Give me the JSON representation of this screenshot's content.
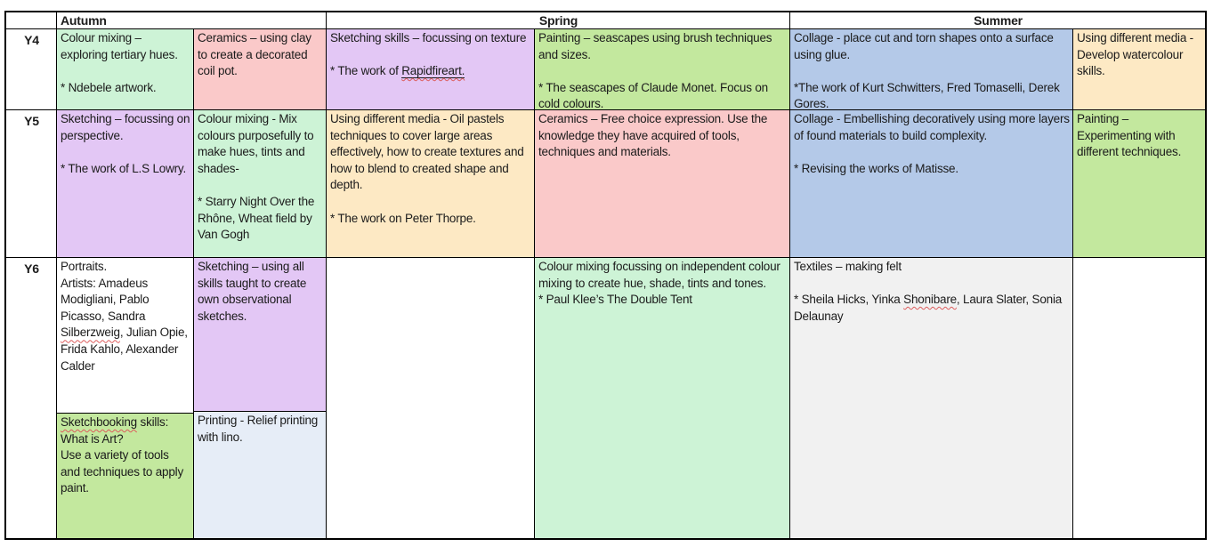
{
  "colors": {
    "mint": "#cdf3d6",
    "pink": "#fac9c9",
    "purple": "#e3c7f5",
    "peach": "#fde9c4",
    "green": "#c3e89e",
    "blue": "#b4c9e8",
    "paleblue": "#e6edf7",
    "grey": "#f1f1f1",
    "white": "#ffffff",
    "squiggle": "#dd5c5c"
  },
  "header": {
    "corner": "",
    "terms": [
      {
        "label": "Autumn"
      },
      {
        "label": "Spring"
      },
      {
        "label": "Summer"
      }
    ]
  },
  "rows": [
    {
      "year": "Y4",
      "cells": [
        {
          "bg": "mint",
          "segments": [
            {
              "text": "Colour mixing – exploring tertiary hues.\n\n* Ndebele artwork."
            }
          ]
        },
        {
          "bg": "pink",
          "segments": [
            {
              "text": "Ceramics – using clay to create a decorated coil pot."
            }
          ]
        },
        {
          "bg": "purple",
          "segments": [
            {
              "text": "Sketching skills – focussing on texture\n\n* The work of "
            },
            {
              "text": "Rapidfireart.",
              "u": true,
              "sq": true
            }
          ]
        },
        {
          "bg": "green",
          "segments": [
            {
              "text": "Painting – seascapes using brush techniques and sizes.\n\n* The seascapes of Claude Monet. Focus on cold colours."
            }
          ]
        },
        {
          "bg": "blue",
          "segments": [
            {
              "text": "Collage - place cut and torn shapes onto a surface using glue.\n\n*The work of Kurt Schwitters, Fred Tomaselli, Derek Gores."
            }
          ]
        },
        {
          "bg": "peach",
          "segments": [
            {
              "text": "Using different media - Develop watercolour skills."
            }
          ]
        }
      ]
    },
    {
      "year": "Y5",
      "cells": [
        {
          "bg": "purple",
          "segments": [
            {
              "text": "Sketching – focussing on  perspective.\n\n* The work of L.S Lowry."
            }
          ]
        },
        {
          "bg": "mint",
          "segments": [
            {
              "text": "Colour mixing - Mix colours purposefully to make hues, tints and shades-\n\n* Starry Night Over the Rhône, Wheat field by Van Gogh"
            }
          ]
        },
        {
          "bg": "peach",
          "segments": [
            {
              "text": "Using different media - Oil pastels techniques to cover large areas effectively, how to create textures and how to blend to created shape and depth.\n\n* The work on Peter Thorpe."
            }
          ]
        },
        {
          "bg": "pink",
          "segments": [
            {
              "text": "Ceramics – Free choice expression. Use the knowledge they have acquired of tools, techniques and materials."
            }
          ]
        },
        {
          "bg": "blue",
          "segments": [
            {
              "text": "Collage - Embellishing decoratively using more layers of found materials to build complexity.\n\n* Revising the works of Matisse."
            }
          ]
        },
        {
          "bg": "green",
          "segments": [
            {
              "text": "Painting – Experimenting with different techniques."
            }
          ]
        }
      ]
    },
    {
      "year": "Y6",
      "cells": [
        {
          "stack": [
            {
              "bg": "white",
              "segments": [
                {
                  "text": "Portraits.\nArtists: Amadeus Modigliani, Pablo Picasso, Sandra "
                },
                {
                  "text": "Silberzweig",
                  "sq": true
                },
                {
                  "text": ", Julian Opie, Frida Kahlo, Alexander Calder"
                }
              ]
            },
            {
              "bg": "green",
              "segments": [
                {
                  "text": "Sketchbooking",
                  "sq": true
                },
                {
                  "text": " skills:\nWhat is Art?\nUse a variety of tools and techniques to apply paint."
                }
              ]
            }
          ]
        },
        {
          "stack": [
            {
              "bg": "purple",
              "segments": [
                {
                  "text": "Sketching – using all skills taught to create own observational sketches."
                }
              ]
            },
            {
              "bg": "paleblue",
              "segments": [
                {
                  "text": "Printing - Relief printing with lino."
                }
              ]
            }
          ]
        },
        {
          "bg": "white",
          "segments": []
        },
        {
          "bg": "mint",
          "segments": [
            {
              "text": "Colour mixing focussing on independent colour mixing to create hue, shade, tints and tones.\n* Paul Klee’s The Double Tent"
            }
          ]
        },
        {
          "bg": "grey",
          "segments": [
            {
              "text": "Textiles – making felt\n\n* Sheila Hicks, Yinka "
            },
            {
              "text": "Shonibare",
              "sq": true
            },
            {
              "text": ", Laura Slater, Sonia Delaunay"
            }
          ]
        },
        {
          "bg": "white",
          "segments": []
        }
      ]
    }
  ]
}
